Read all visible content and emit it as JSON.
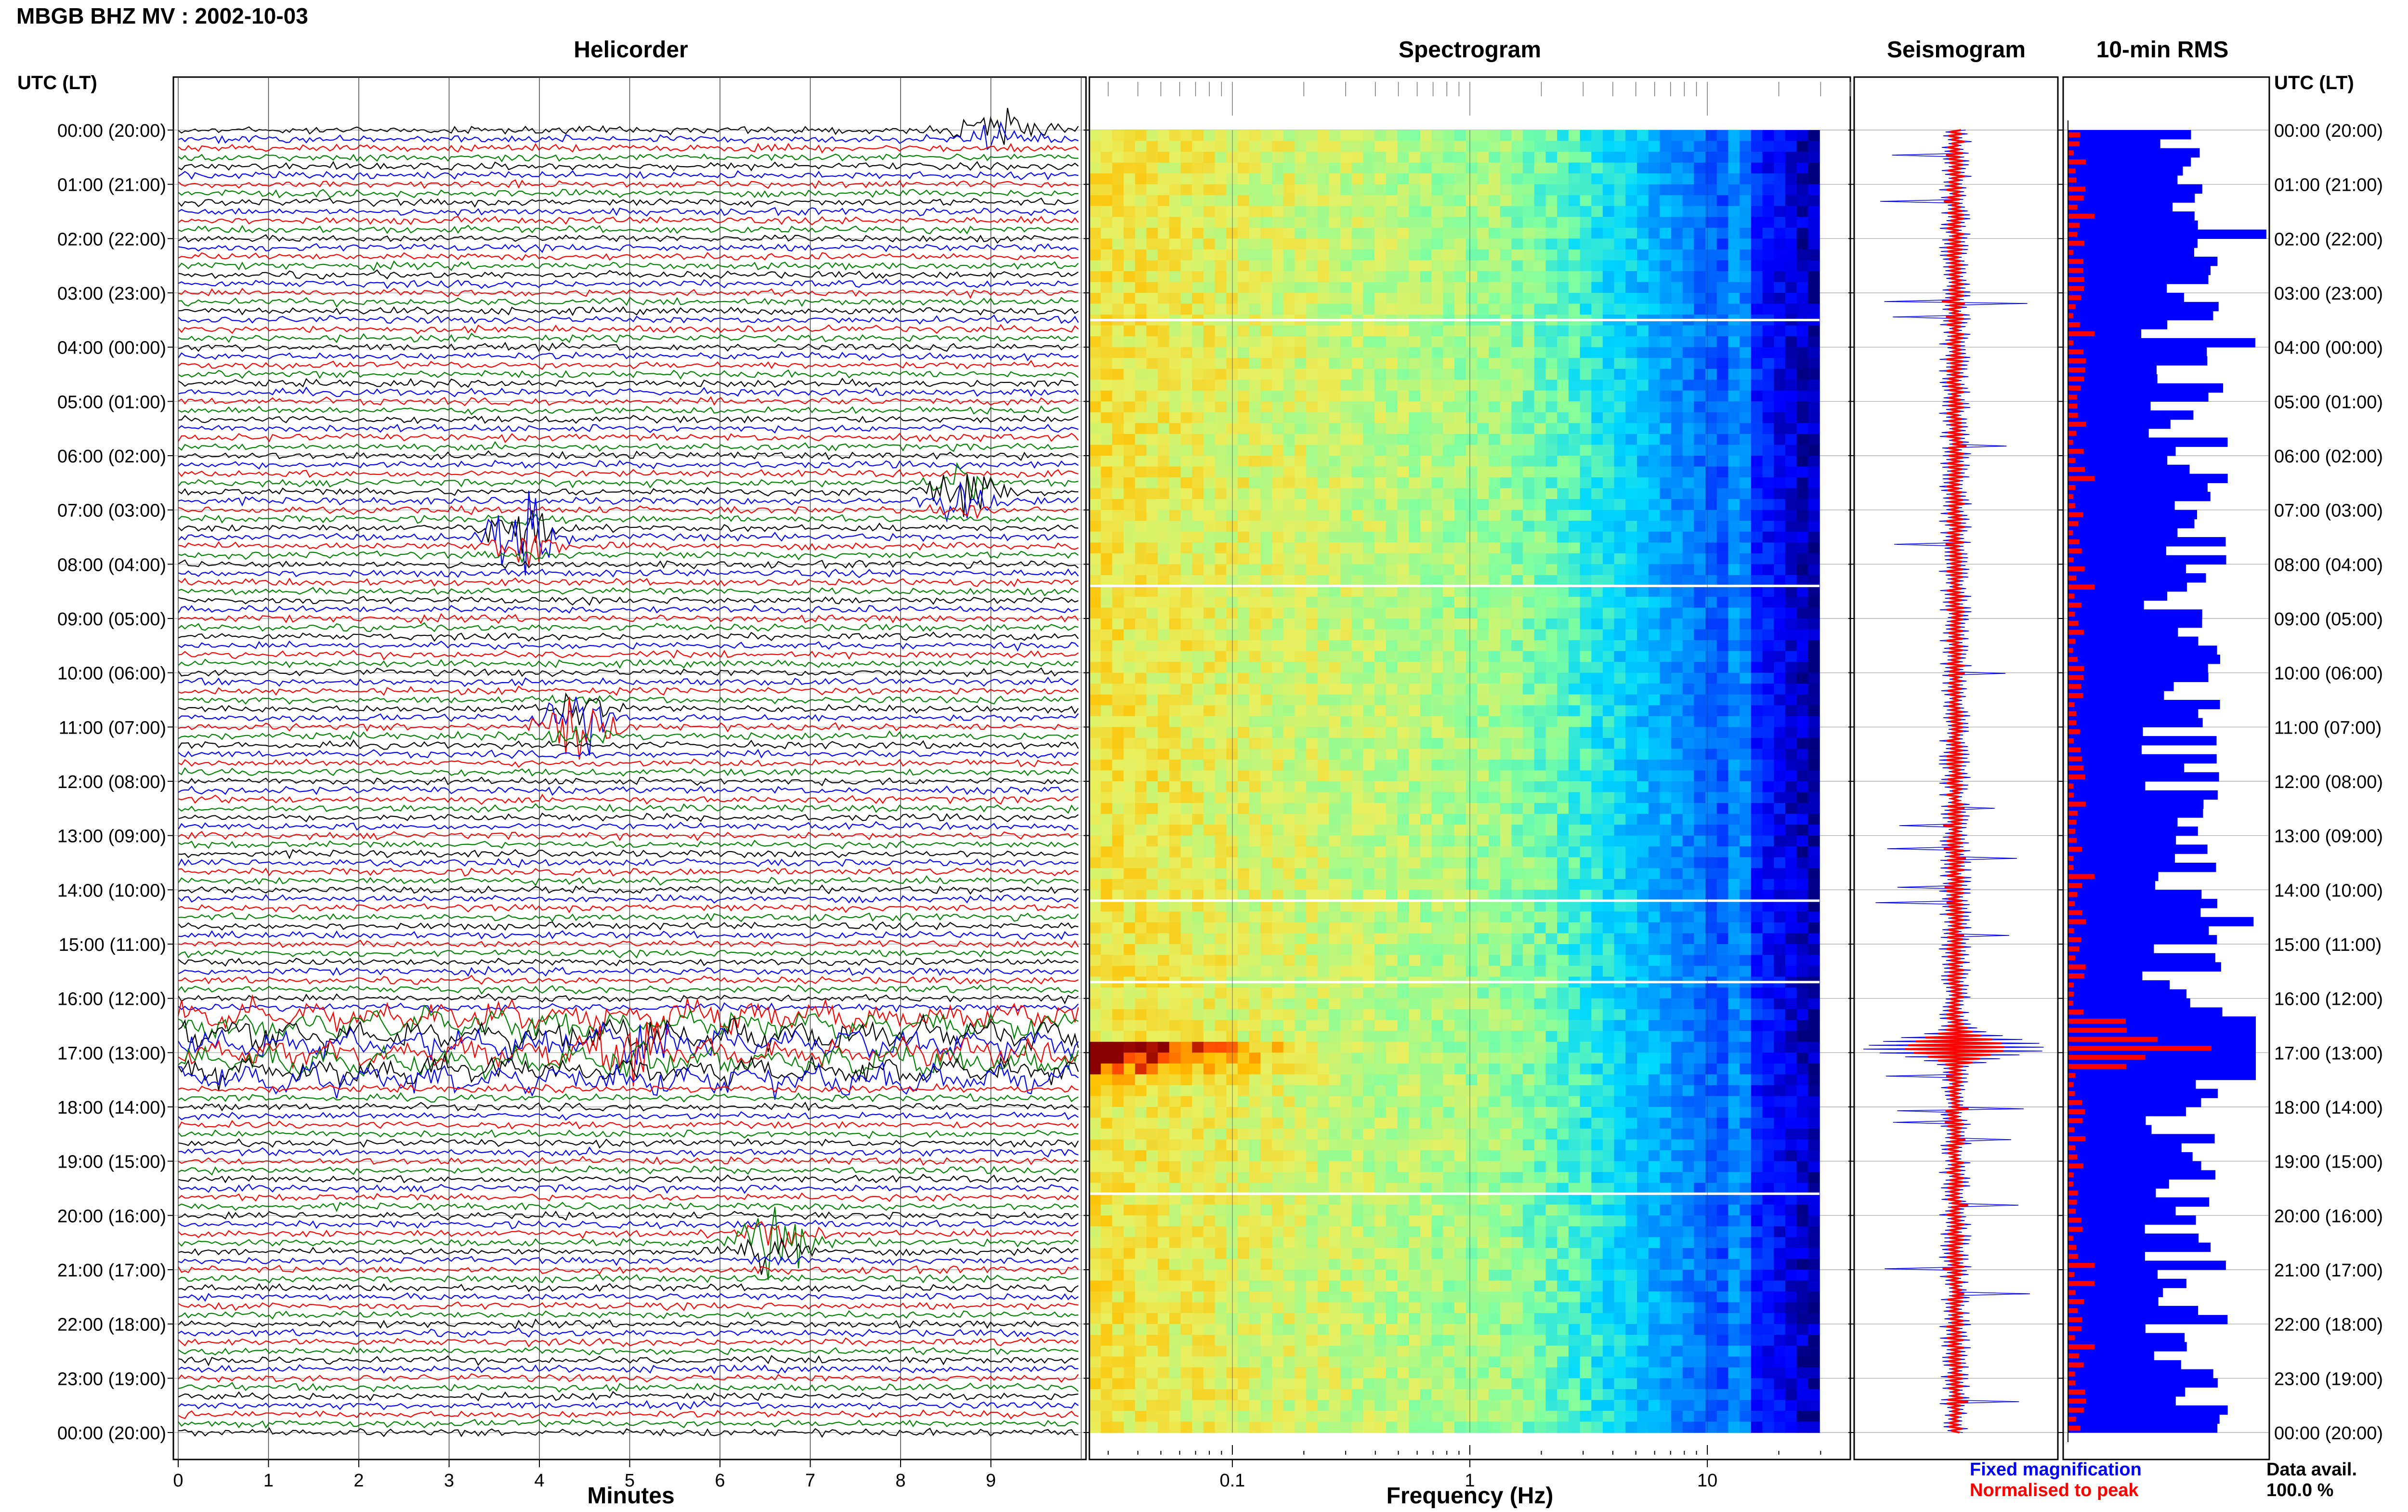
{
  "header": {
    "title": "MBGB BHZ MV : 2002-10-03",
    "time_label_left": "UTC (LT)",
    "time_label_right": "UTC (LT)"
  },
  "panels": {
    "helicorder": "Helicorder",
    "spectrogram": "Spectrogram",
    "seismogram": "Seismogram",
    "rms": "10-min RMS"
  },
  "time_labels": [
    "00:00 (20:00)",
    "01:00 (21:00)",
    "02:00 (22:00)",
    "03:00 (23:00)",
    "04:00 (00:00)",
    "05:00 (01:00)",
    "06:00 (02:00)",
    "07:00 (03:00)",
    "08:00 (04:00)",
    "09:00 (05:00)",
    "10:00 (06:00)",
    "11:00 (07:00)",
    "12:00 (08:00)",
    "13:00 (09:00)",
    "14:00 (10:00)",
    "15:00 (11:00)",
    "16:00 (12:00)",
    "17:00 (13:00)",
    "18:00 (14:00)",
    "19:00 (15:00)",
    "20:00 (16:00)",
    "21:00 (17:00)",
    "22:00 (18:00)",
    "23:00 (19:00)",
    "00:00 (20:00)"
  ],
  "legend": {
    "fixed": "Fixed magnification",
    "normalised": "Normalised to peak",
    "fixed_color": "#0000ff",
    "normalised_color": "#ff0000",
    "data_avail_label": "Data avail.",
    "data_avail_value": "100.0 %"
  },
  "chart_data": [
    {
      "type": "line",
      "name": "helicorder",
      "title": "Helicorder",
      "xlabel": "Minutes",
      "xlim": [
        0,
        10
      ],
      "x_ticks": [
        0,
        1,
        2,
        3,
        4,
        5,
        6,
        7,
        8,
        9
      ],
      "rows_per_hour": 6,
      "hours": 24,
      "trace_colors": [
        "#000000",
        "#0000ff",
        "#ff0000",
        "#008000"
      ],
      "events": [
        {
          "hour": 0.0,
          "minute": 9.1,
          "amp": 2.0,
          "color": "#0000ff"
        },
        {
          "hour": 6.7,
          "minute": 8.7,
          "amp": 3.0,
          "color": "#8b0000"
        },
        {
          "hour": 7.5,
          "minute": 3.8,
          "amp": 3.5,
          "color": "#8b0000"
        },
        {
          "hour": 10.9,
          "minute": 4.4,
          "amp": 3.5,
          "color": "#008000"
        },
        {
          "hour": 16.9,
          "minute": 5.0,
          "amp": 2.0,
          "color": "mixed"
        },
        {
          "hour": 20.5,
          "minute": 6.6,
          "amp": 3.0,
          "color": "#000000"
        }
      ]
    },
    {
      "type": "heatmap",
      "name": "spectrogram",
      "title": "Spectrogram",
      "xlabel": "Frequency (Hz)",
      "x_scale": "log",
      "xlim": [
        0.025,
        40
      ],
      "x_tick_labels": [
        "0.1",
        "1",
        "10"
      ],
      "x_tick_values": [
        0.1,
        1,
        10
      ],
      "strong_event_hour": 16.9
    },
    {
      "type": "line",
      "name": "seismogram",
      "title": "Seismogram",
      "series": [
        {
          "name": "Fixed magnification",
          "color": "#0000ff"
        },
        {
          "name": "Normalised to peak",
          "color": "#ff0000"
        }
      ],
      "strong_event_hour": 16.9
    },
    {
      "type": "bar",
      "name": "rms",
      "title": "10-min RMS",
      "orientation": "horizontal",
      "bins": 144,
      "series": [
        {
          "name": "Fixed magnification",
          "color": "#0000ff"
        },
        {
          "name": "Normalised to peak",
          "color": "#ff0000"
        }
      ]
    }
  ]
}
